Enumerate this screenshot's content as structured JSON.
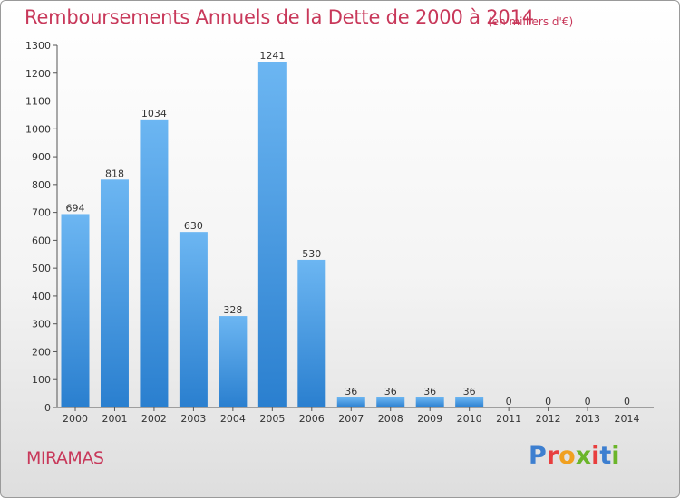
{
  "chart_data": {
    "type": "bar",
    "title": "Remboursements Annuels de la Dette de 2000 à 2014",
    "subtitle": "(en milliers d'€)",
    "categories": [
      "2000",
      "2001",
      "2002",
      "2003",
      "2004",
      "2005",
      "2006",
      "2007",
      "2008",
      "2009",
      "2010",
      "2011",
      "2012",
      "2013",
      "2014"
    ],
    "values": [
      694,
      818,
      1034,
      630,
      328,
      1241,
      530,
      36,
      36,
      36,
      36,
      0,
      0,
      0,
      0
    ],
    "ylim": [
      0,
      1300
    ],
    "yticks": [
      0,
      100,
      200,
      300,
      400,
      500,
      600,
      700,
      800,
      900,
      1000,
      1100,
      1200,
      1300
    ],
    "grid": false,
    "bar_color": "#3a8fd9",
    "bar_color_light": "#6cb6f2"
  },
  "footer": {
    "city": "MIRAMAS",
    "logo_text": "Proxiti"
  },
  "colors": {
    "title": "#c8385a",
    "logo": [
      "#3d7fd0",
      "#e83e3e",
      "#f0a020",
      "#6bb52a",
      "#e83e3e",
      "#3d7fd0",
      "#6bb52a"
    ]
  }
}
